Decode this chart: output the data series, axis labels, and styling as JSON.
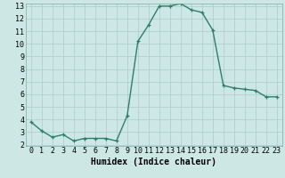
{
  "x": [
    0,
    1,
    2,
    3,
    4,
    5,
    6,
    7,
    8,
    9,
    10,
    11,
    12,
    13,
    14,
    15,
    16,
    17,
    18,
    19,
    20,
    21,
    22,
    23
  ],
  "y": [
    3.8,
    3.1,
    2.6,
    2.8,
    2.3,
    2.5,
    2.5,
    2.5,
    2.3,
    4.3,
    10.2,
    11.5,
    13.0,
    13.0,
    13.2,
    12.7,
    12.5,
    11.1,
    6.7,
    6.5,
    6.4,
    6.3,
    5.8,
    5.8
  ],
  "line_color": "#2e7d6e",
  "marker": "+",
  "marker_size": 3,
  "marker_linewidth": 0.9,
  "bg_color": "#cde8e4",
  "grid_color": "#a8ccc8",
  "xlabel": "Humidex (Indice chaleur)",
  "ylim": [
    2,
    13
  ],
  "xlim": [
    -0.5,
    23.5
  ],
  "yticks": [
    2,
    3,
    4,
    5,
    6,
    7,
    8,
    9,
    10,
    11,
    12,
    13
  ],
  "xticks": [
    0,
    1,
    2,
    3,
    4,
    5,
    6,
    7,
    8,
    9,
    10,
    11,
    12,
    13,
    14,
    15,
    16,
    17,
    18,
    19,
    20,
    21,
    22,
    23
  ],
  "xlabel_fontsize": 7,
  "tick_fontsize": 6,
  "linewidth": 1.0
}
